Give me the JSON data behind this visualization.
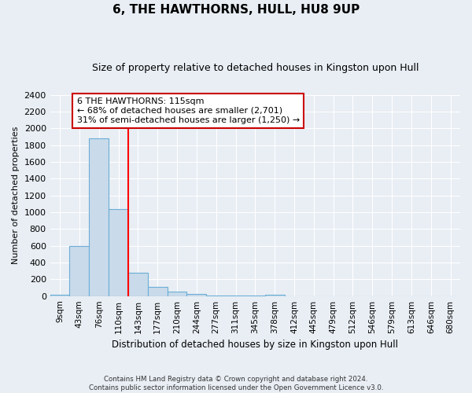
{
  "title": "6, THE HAWTHORNS, HULL, HU8 9UP",
  "subtitle": "Size of property relative to detached houses in Kingston upon Hull",
  "xlabel": "Distribution of detached houses by size in Kingston upon Hull",
  "ylabel": "Number of detached properties",
  "bar_color": "#c9daea",
  "bar_edge_color": "#6baed6",
  "bin_labels": [
    "9sqm",
    "43sqm",
    "76sqm",
    "110sqm",
    "143sqm",
    "177sqm",
    "210sqm",
    "244sqm",
    "277sqm",
    "311sqm",
    "345sqm",
    "378sqm",
    "412sqm",
    "445sqm",
    "479sqm",
    "512sqm",
    "546sqm",
    "579sqm",
    "613sqm",
    "646sqm",
    "680sqm"
  ],
  "bar_values": [
    20,
    600,
    1880,
    1040,
    280,
    110,
    50,
    25,
    5,
    5,
    5,
    20,
    0,
    0,
    0,
    0,
    0,
    0,
    0,
    0,
    0
  ],
  "ylim": [
    0,
    2400
  ],
  "yticks": [
    0,
    200,
    400,
    600,
    800,
    1000,
    1200,
    1400,
    1600,
    1800,
    2000,
    2200,
    2400
  ],
  "red_line_x": 3.5,
  "annotation_text": "6 THE HAWTHORNS: 115sqm\n← 68% of detached houses are smaller (2,701)\n31% of semi-detached houses are larger (1,250) →",
  "annotation_box_color": "#ffffff",
  "annotation_box_edge": "#cc0000",
  "footer_line1": "Contains HM Land Registry data © Crown copyright and database right 2024.",
  "footer_line2": "Contains public sector information licensed under the Open Government Licence v3.0.",
  "background_color": "#e8eef4",
  "grid_color": "#ffffff",
  "title_fontsize": 11,
  "subtitle_fontsize": 9
}
